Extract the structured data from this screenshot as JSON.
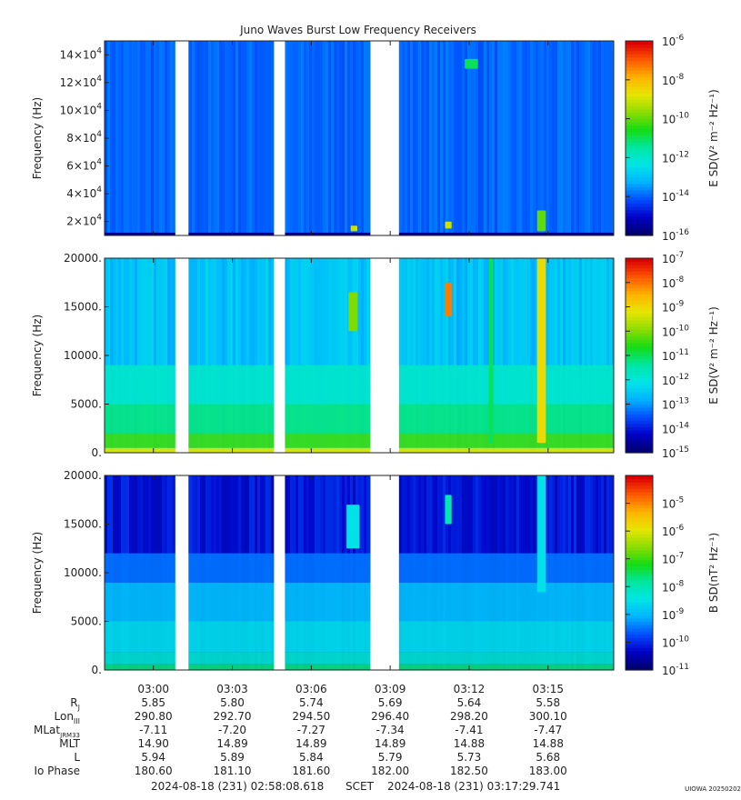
{
  "title": "Juno Waves Burst Low Frequency Receivers",
  "colors": {
    "colormap": [
      "#00006e",
      "#0000c8",
      "#0050ff",
      "#00b4ff",
      "#00e6e6",
      "#00e6a0",
      "#14dc14",
      "#8cdc00",
      "#e6e600",
      "#ffb400",
      "#ff5a00",
      "#dc0000"
    ]
  },
  "chart_data": [
    {
      "type": "heatmap",
      "panel": "upper",
      "ylabel": "Frequency (Hz)",
      "ylim": [
        10000,
        150000
      ],
      "y_ticks": [
        {
          "mant": "2",
          "exp": "4",
          "value": 20000
        },
        {
          "mant": "4",
          "exp": "4",
          "value": 40000
        },
        {
          "mant": "6",
          "exp": "4",
          "value": 60000
        },
        {
          "mant": "8",
          "exp": "4",
          "value": 80000
        },
        {
          "mant": "10",
          "exp": "4",
          "value": 100000
        },
        {
          "mant": "12",
          "exp": "4",
          "value": 120000
        },
        {
          "mant": "14",
          "exp": "4",
          "value": 140000
        }
      ],
      "colorbar": {
        "label": "E SD(V² m⁻² Hz⁻¹)",
        "range_exp": [
          -16,
          -6
        ],
        "ticks": [
          {
            "base": "10",
            "exp": "-6",
            "e": -6
          },
          {
            "base": "10",
            "exp": "-8",
            "e": -8
          },
          {
            "base": "10",
            "exp": "-10",
            "e": -10
          },
          {
            "base": "10",
            "exp": "-12",
            "e": -12
          },
          {
            "base": "10",
            "exp": "-14",
            "e": -14
          },
          {
            "base": "10",
            "exp": "-16",
            "e": -16
          }
        ]
      },
      "background_level": -14.0,
      "features": [
        {
          "t0": "03:11:05",
          "t1": "03:11:20",
          "f0": 15000,
          "f1": 20000,
          "level": -9
        },
        {
          "t0": "03:14:35",
          "t1": "03:14:55",
          "f0": 13000,
          "f1": 28000,
          "level": -10
        },
        {
          "t0": "03:07:30",
          "t1": "03:07:45",
          "f0": 13000,
          "f1": 17000,
          "level": -9
        },
        {
          "t0": "03:11:50",
          "t1": "03:12:20",
          "f0": 130000,
          "f1": 137000,
          "level": -11
        }
      ]
    },
    {
      "type": "heatmap",
      "panel": "middle",
      "ylabel": "Frequency (Hz)",
      "ylim": [
        0,
        20000
      ],
      "y_ticks": [
        {
          "label": "0.",
          "value": 0
        },
        {
          "label": "5000.",
          "value": 5000
        },
        {
          "label": "10000.",
          "value": 10000
        },
        {
          "label": "15000.",
          "value": 15000
        },
        {
          "label": "20000.",
          "value": 20000
        }
      ],
      "colorbar": {
        "label": "E SD(V² m⁻² Hz⁻¹)",
        "range_exp": [
          -15,
          -7
        ],
        "ticks": [
          {
            "base": "10",
            "exp": "-7",
            "e": -7
          },
          {
            "base": "10",
            "exp": "-8",
            "e": -8
          },
          {
            "base": "10",
            "exp": "-9",
            "e": -9
          },
          {
            "base": "10",
            "exp": "-10",
            "e": -10
          },
          {
            "base": "10",
            "exp": "-11",
            "e": -11
          },
          {
            "base": "10",
            "exp": "-12",
            "e": -12
          },
          {
            "base": "10",
            "exp": "-13",
            "e": -13
          },
          {
            "base": "10",
            "exp": "-14",
            "e": -14
          },
          {
            "base": "10",
            "exp": "-15",
            "e": -15
          }
        ]
      },
      "background_level": -12.6,
      "features": [
        {
          "t0": "03:11:05",
          "t1": "03:11:20",
          "f0": 14000,
          "f1": 17500,
          "level": -8
        },
        {
          "t0": "03:14:35",
          "t1": "03:14:55",
          "f0": 1000,
          "f1": 20000,
          "level": -9
        },
        {
          "t0": "03:07:25",
          "t1": "03:07:45",
          "f0": 12500,
          "f1": 16500,
          "level": -10
        },
        {
          "t0": "03:12:45",
          "t1": "03:12:55",
          "f0": 1000,
          "f1": 20000,
          "level": -11
        }
      ]
    },
    {
      "type": "heatmap",
      "panel": "lower",
      "ylabel": "Frequency (Hz)",
      "ylim": [
        0,
        20000
      ],
      "y_ticks": [
        {
          "label": "0.",
          "value": 0
        },
        {
          "label": "5000.",
          "value": 5000
        },
        {
          "label": "10000.",
          "value": 10000
        },
        {
          "label": "15000.",
          "value": 15000
        },
        {
          "label": "20000.",
          "value": 20000
        }
      ],
      "colorbar": {
        "label": "B SD(nT² Hz⁻¹)",
        "range_exp": [
          -11,
          -4
        ],
        "ticks": [
          {
            "base": "10",
            "exp": "-5",
            "e": -5
          },
          {
            "base": "10",
            "exp": "-6",
            "e": -6
          },
          {
            "base": "10",
            "exp": "-7",
            "e": -7
          },
          {
            "base": "10",
            "exp": "-8",
            "e": -8
          },
          {
            "base": "10",
            "exp": "-9",
            "e": -9
          },
          {
            "base": "10",
            "exp": "-10",
            "e": -10
          },
          {
            "base": "10",
            "exp": "-11",
            "e": -11
          }
        ]
      },
      "background_level": -10.2,
      "features": [
        {
          "t0": "03:11:05",
          "t1": "03:11:20",
          "f0": 15000,
          "f1": 18000,
          "level": -8
        },
        {
          "t0": "03:14:35",
          "t1": "03:14:55",
          "f0": 8000,
          "f1": 20000,
          "level": -8.5
        },
        {
          "t0": "03:07:20",
          "t1": "03:07:50",
          "f0": 12500,
          "f1": 17000,
          "level": -8.5
        }
      ]
    }
  ],
  "time_axis": {
    "start": "02:58:08.618",
    "end": "03:17:29.741",
    "data_gaps": [
      {
        "start": "03:00:50",
        "end": "03:01:20"
      },
      {
        "start": "03:04:35",
        "end": "03:05:00"
      },
      {
        "start": "03:08:15",
        "end": "03:09:20"
      }
    ],
    "tick_labels": [
      "03:00",
      "03:03",
      "03:06",
      "03:09",
      "03:12",
      "03:15"
    ]
  },
  "ephemeris": {
    "rows": [
      {
        "label": "R",
        "sub": "J",
        "values": [
          "5.85",
          "5.80",
          "5.74",
          "5.69",
          "5.64",
          "5.58"
        ]
      },
      {
        "label": "Lon",
        "sub": "III",
        "values": [
          "290.80",
          "292.70",
          "294.50",
          "296.40",
          "298.20",
          "300.10"
        ]
      },
      {
        "label": "MLat",
        "sub": "JRM33",
        "values": [
          "-7.11",
          "-7.20",
          "-7.27",
          "-7.34",
          "-7.41",
          "-7.47"
        ]
      },
      {
        "label": "MLT",
        "sub": "",
        "values": [
          "14.90",
          "14.89",
          "14.89",
          "14.89",
          "14.88",
          "14.88"
        ]
      },
      {
        "label": "L",
        "sub": "",
        "values": [
          "5.94",
          "5.89",
          "5.84",
          "5.79",
          "5.73",
          "5.68"
        ]
      },
      {
        "label": "Io Phase",
        "sub": "",
        "values": [
          "180.60",
          "181.10",
          "181.60",
          "182.00",
          "182.50",
          "183.00"
        ]
      }
    ]
  },
  "footer": {
    "start_label": "2024-08-18 (231) 02:58:08.618",
    "scet_label": "SCET",
    "end_label": "2024-08-18 (231) 03:17:29.741",
    "credit": "UIOWA 20250202"
  }
}
